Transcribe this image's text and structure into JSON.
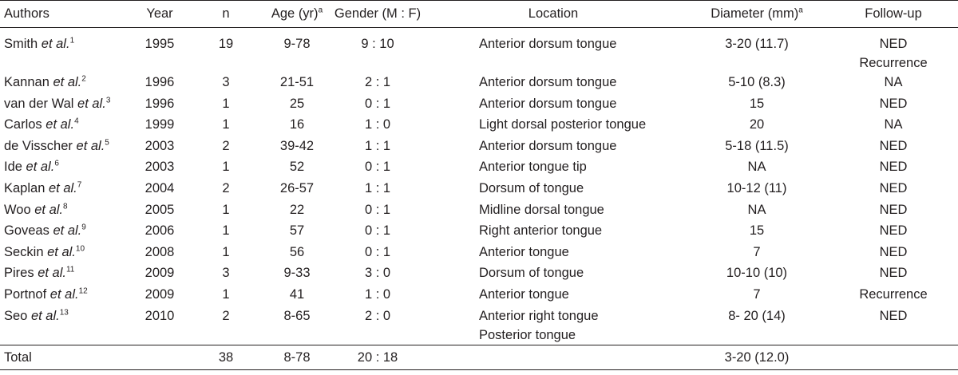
{
  "headers": {
    "authors": "Authors",
    "year": "Year",
    "n": "n",
    "age": "Age (yr)",
    "age_sup": "a",
    "gender": "Gender (M : F)",
    "location": "Location",
    "diameter": "Diameter (mm)",
    "diameter_sup": "a",
    "followup": "Follow-up"
  },
  "rows": [
    {
      "author": "Smith",
      "etal": "et al.",
      "ref": "1",
      "year": "1995",
      "n": "19",
      "age": "9-78",
      "gender": "9 : 10",
      "location": [
        "Anterior dorsum tongue"
      ],
      "diameter": "3-20 (11.7)",
      "followup": [
        "NED",
        "Recurrence"
      ]
    },
    {
      "author": "Kannan",
      "etal": "et al.",
      "ref": "2",
      "year": "1996",
      "n": "3",
      "age": "21-51",
      "gender": "2 : 1",
      "location": [
        "Anterior dorsum tongue"
      ],
      "diameter": "5-10 (8.3)",
      "followup": [
        "NA"
      ]
    },
    {
      "author": "van der Wal",
      "etal": "et al.",
      "ref": "3",
      "year": "1996",
      "n": "1",
      "age": "25",
      "gender": "0 : 1",
      "location": [
        "Anterior dorsum tongue"
      ],
      "diameter": "15",
      "followup": [
        "NED"
      ]
    },
    {
      "author": "Carlos",
      "etal": "et al.",
      "ref": "4",
      "year": "1999",
      "n": "1",
      "age": "16",
      "gender": "1 : 0",
      "location": [
        "Light dorsal posterior tongue"
      ],
      "diameter": "20",
      "followup": [
        "NA"
      ]
    },
    {
      "author": "de Visscher",
      "etal": "et al.",
      "ref": "5",
      "year": "2003",
      "n": "2",
      "age": "39-42",
      "gender": "1 : 1",
      "location": [
        "Anterior dorsum tongue"
      ],
      "diameter": "5-18 (11.5)",
      "followup": [
        "NED"
      ]
    },
    {
      "author": "Ide",
      "etal": "et al.",
      "ref": "6",
      "year": "2003",
      "n": "1",
      "age": "52",
      "gender": "0 : 1",
      "location": [
        "Anterior tongue tip"
      ],
      "diameter": "NA",
      "followup": [
        "NED"
      ]
    },
    {
      "author": "Kaplan",
      "etal": "et al.",
      "ref": "7",
      "year": "2004",
      "n": "2",
      "age": "26-57",
      "gender": "1 : 1",
      "location": [
        "Dorsum of tongue"
      ],
      "diameter": "10-12 (11)",
      "followup": [
        "NED"
      ]
    },
    {
      "author": "Woo",
      "etal": "et al.",
      "ref": "8",
      "year": "2005",
      "n": "1",
      "age": "22",
      "gender": "0 : 1",
      "location": [
        "Midline dorsal tongue"
      ],
      "diameter": "NA",
      "followup": [
        "NED"
      ]
    },
    {
      "author": "Goveas",
      "etal": "et al.",
      "ref": "9",
      "year": "2006",
      "n": "1",
      "age": "57",
      "gender": "0 : 1",
      "location": [
        "Right anterior tongue"
      ],
      "diameter": "15",
      "followup": [
        "NED"
      ]
    },
    {
      "author": "Seckin",
      "etal": "et al.",
      "ref": "10",
      "year": "2008",
      "n": "1",
      "age": "56",
      "gender": "0 : 1",
      "location": [
        "Anterior tongue"
      ],
      "diameter": "7",
      "followup": [
        "NED"
      ]
    },
    {
      "author": "Pires",
      "etal": "et al.",
      "ref": "11",
      "year": "2009",
      "n": "3",
      "age": "9-33",
      "gender": "3 : 0",
      "location": [
        "Dorsum of tongue"
      ],
      "diameter": "10-10 (10)",
      "followup": [
        "NED"
      ]
    },
    {
      "author": "Portnof",
      "etal": "et al.",
      "ref": "12",
      "year": "2009",
      "n": "1",
      "age": "41",
      "gender": "1 : 0",
      "location": [
        "Anterior tongue"
      ],
      "diameter": "7",
      "followup": [
        "Recurrence"
      ]
    },
    {
      "author": "Seo",
      "etal": "et al.",
      "ref": "13",
      "year": "2010",
      "n": "2",
      "age": "8-65",
      "gender": "2 : 0",
      "location": [
        "Anterior right tongue",
        "Posterior tongue"
      ],
      "diameter": "8- 20 (14)",
      "followup": [
        "NED"
      ]
    }
  ],
  "total": {
    "label": "Total",
    "n": "38",
    "age": "8-78",
    "gender": "20 : 18",
    "diameter": "3-20 (12.0)"
  }
}
